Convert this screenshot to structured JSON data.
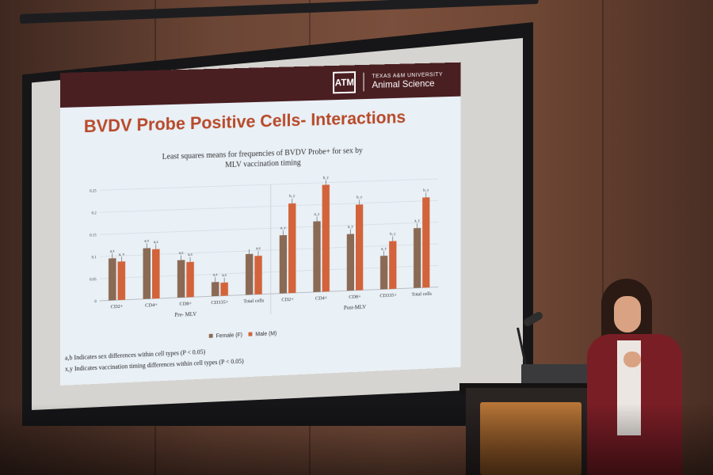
{
  "slide": {
    "brand_top": "TEXAS A&M UNIVERSITY",
    "brand_main": "Animal Science",
    "brand_logo_text": "ATM",
    "title": "BVDV Probe Positive Cells- Interactions",
    "footnote_1": "a,b Indicates sex differences within cell types (P < 0.05)",
    "footnote_2": "x,y Indicates vaccination timing differences within cell types (P < 0.05)"
  },
  "chart_data": {
    "type": "bar",
    "title": "Least squares means for frequencies of BVDV Probe+ for sex by MLV vaccination timing",
    "categories": [
      "CD2+",
      "CD4+",
      "CD8+",
      "CD335+",
      "Total cells",
      "CD2+",
      "CD4+",
      "CD8+",
      "CD335+",
      "Total cells"
    ],
    "groups": [
      {
        "label": "Pre- MLV",
        "start": 0,
        "end": 4
      },
      {
        "label": "Post-MLV",
        "start": 5,
        "end": 9
      }
    ],
    "series": [
      {
        "name": "Female (F)",
        "color": "#8a6a55",
        "values": [
          0.095,
          0.115,
          0.085,
          0.032,
          0.093,
          0.133,
          0.162,
          0.13,
          0.077,
          0.138
        ],
        "labels": [
          "a,x",
          "a,x",
          "a,x",
          "a,x",
          "",
          "a, y",
          "a, y",
          "a, y",
          "a, y",
          "a, y"
        ]
      },
      {
        "name": "Male (M)",
        "color": "#d2633a",
        "values": [
          0.087,
          0.112,
          0.08,
          0.03,
          0.088,
          0.205,
          0.245,
          0.197,
          0.11,
          0.208
        ],
        "labels": [
          "a, x",
          "a,x",
          "a,x",
          "a,x",
          "a,x",
          "b, y",
          "b, y",
          "b, y",
          "b, y",
          "b, y"
        ]
      }
    ],
    "ylim": [
      0,
      0.25
    ],
    "yticks": [
      "0",
      "0.05",
      "0.1",
      "0.15",
      "0.2",
      "0.25"
    ],
    "ytick_values": [
      0,
      0.05,
      0.1,
      0.15,
      0.2,
      0.25
    ],
    "grid": true,
    "legend": "bottom"
  }
}
